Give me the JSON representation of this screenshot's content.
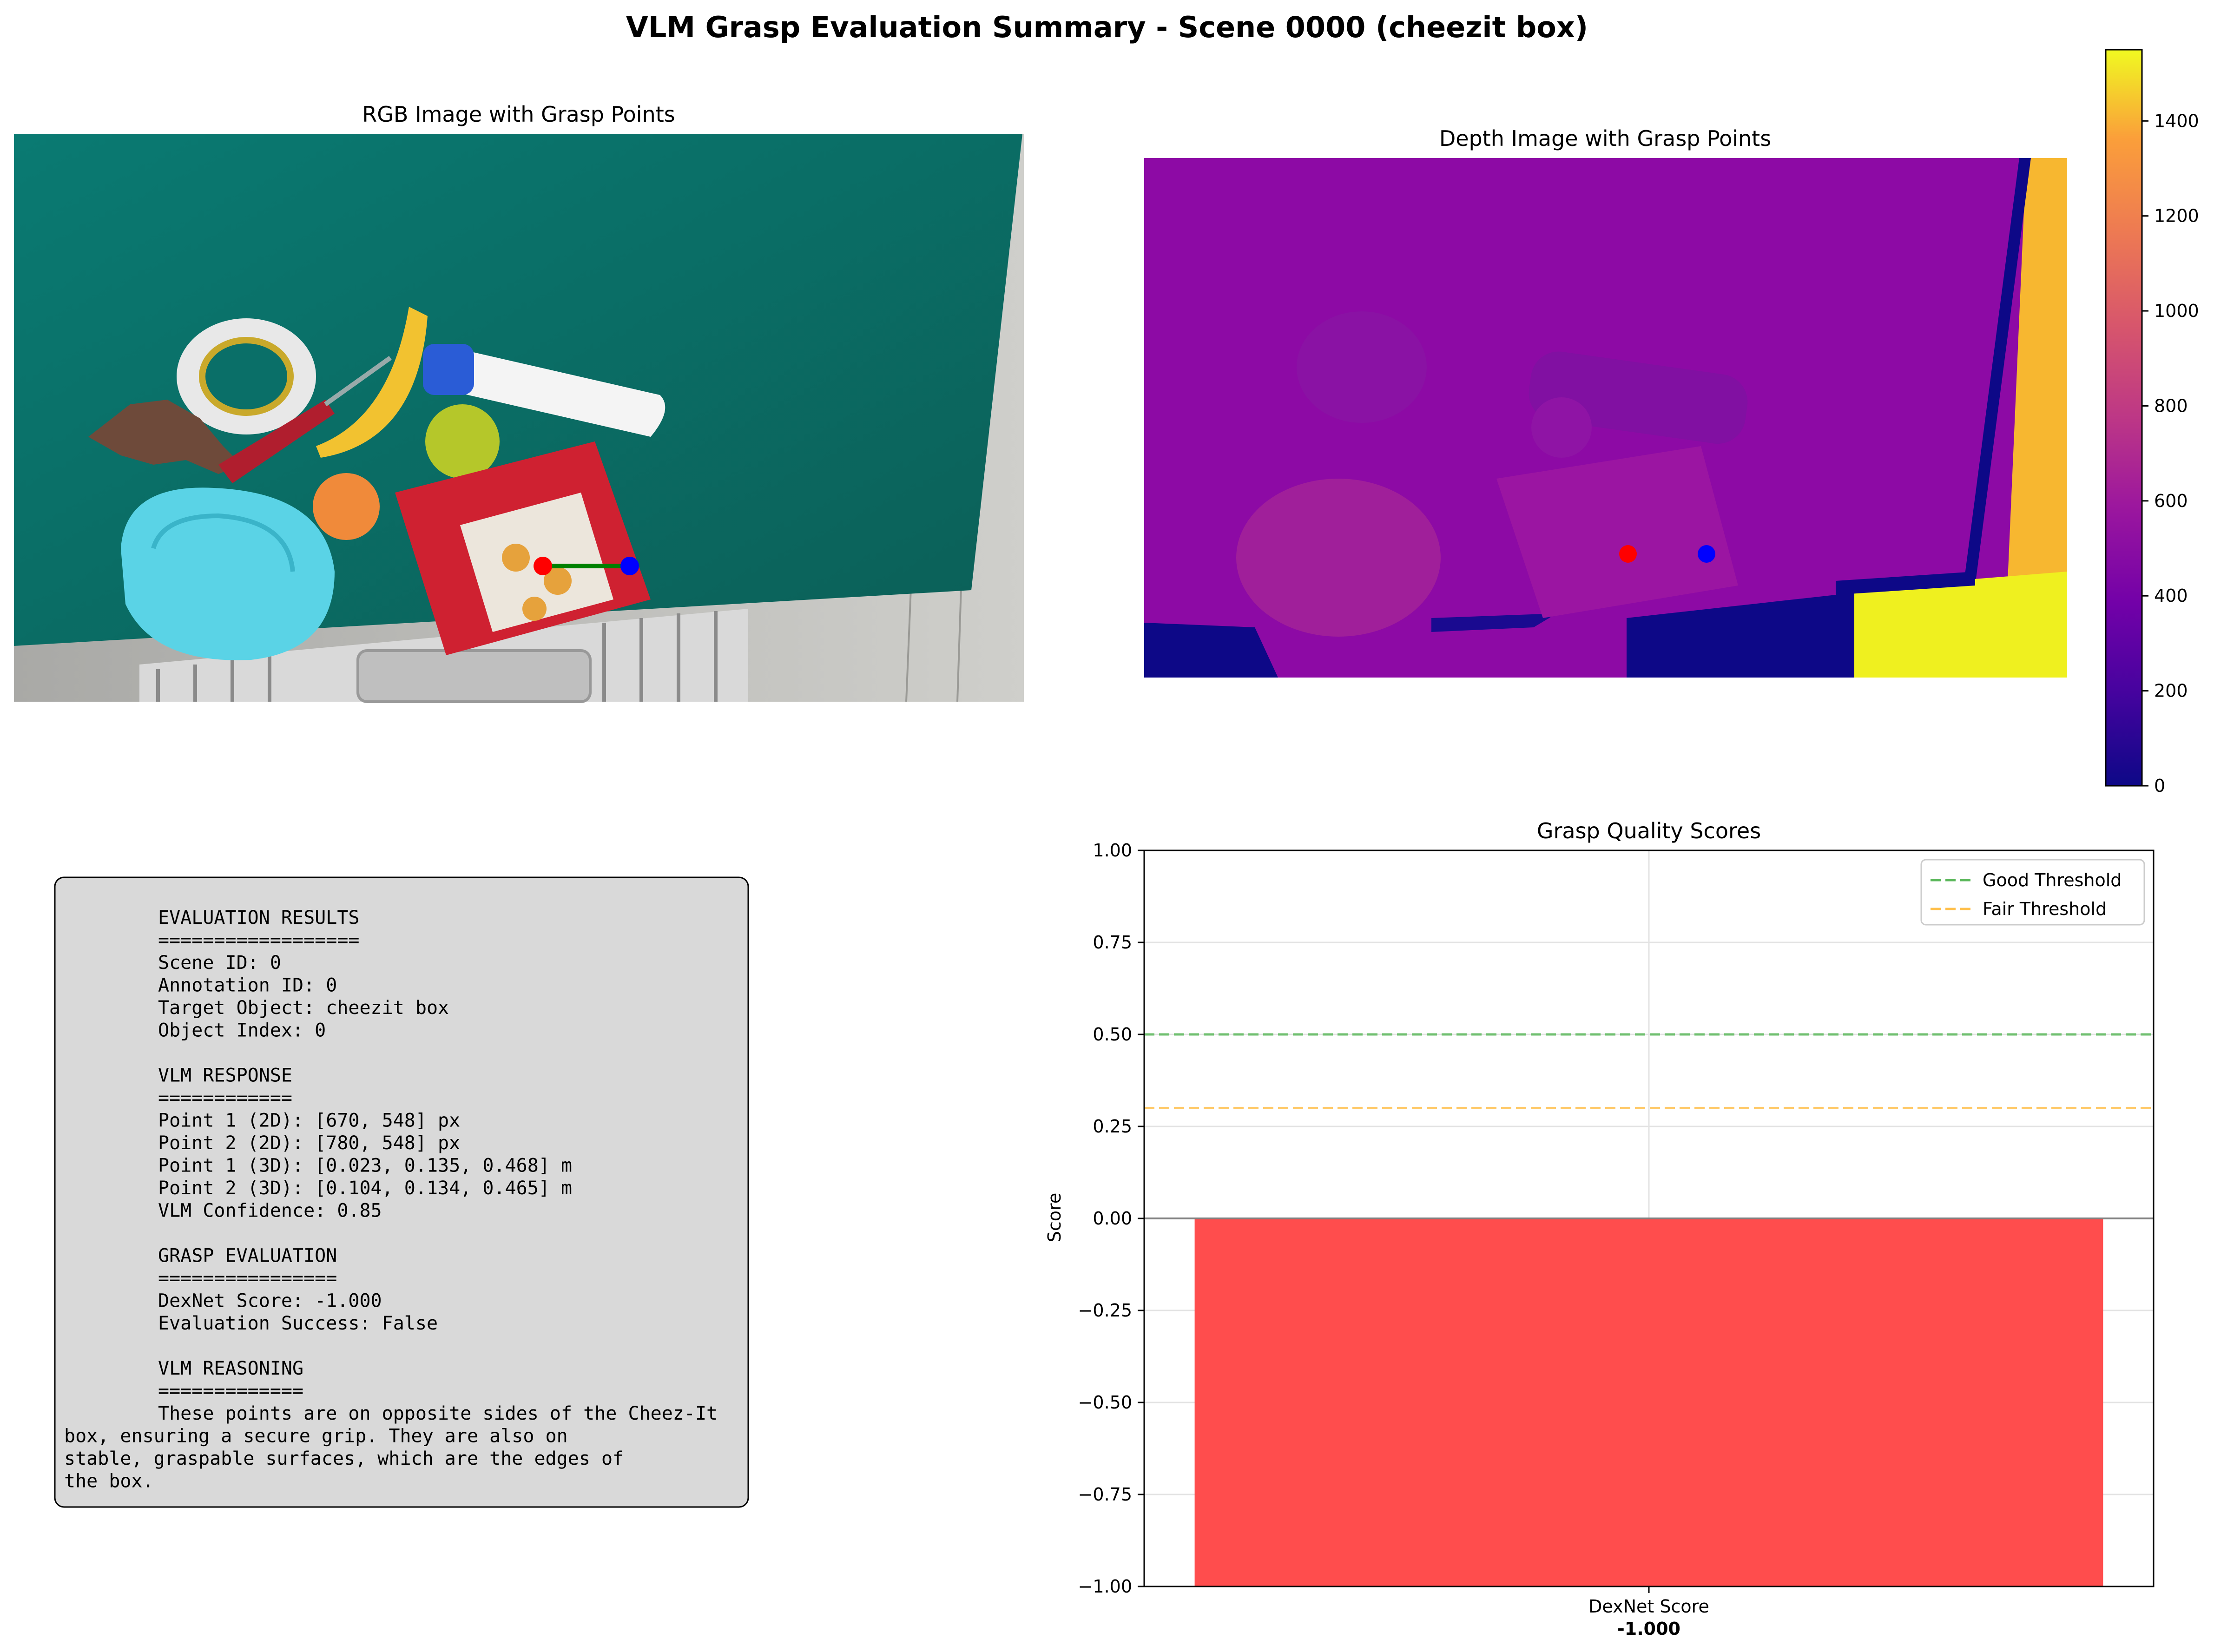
{
  "title": "VLM Grasp Evaluation Summary - Scene 0000 (cheezit box)",
  "rgb_panel": {
    "title": "RGB Image with Grasp Points"
  },
  "depth_panel": {
    "title": "Depth Image with Grasp Points",
    "colorbar": {
      "min": 0,
      "max": 1550,
      "ticks": [
        0,
        200,
        400,
        600,
        800,
        1000,
        1200,
        1400
      ]
    }
  },
  "results_box": {
    "lines": [
      "EVALUATION RESULTS",
      "==================",
      "Scene ID: 0",
      "Annotation ID: 0",
      "Target Object: cheezit box",
      "Object Index: 0",
      "",
      "VLM RESPONSE",
      "============",
      "Point 1 (2D): [670, 548] px",
      "Point 2 (2D): [780, 548] px",
      "Point 1 (3D): [0.023, 0.135, 0.468] m",
      "Point 2 (3D): [0.104, 0.134, 0.465] m",
      "VLM Confidence: 0.85",
      "",
      "GRASP EVALUATION",
      "================",
      "DexNet Score: -1.000",
      "Evaluation Success: False",
      "",
      "VLM REASONING",
      "============="
    ],
    "reasoning_lines": [
      "These points are on opposite sides of the Cheez-It",
      "box, ensuring a secure grip. They are also on",
      "stable, graspable surfaces, which are the edges of",
      "the box."
    ]
  },
  "chart_data": {
    "type": "bar",
    "title": "Grasp Quality Scores",
    "categories": [
      "DexNet Score"
    ],
    "values": [
      -1.0
    ],
    "value_labels": [
      "-1.000"
    ],
    "ylabel": "Score",
    "xlabel": "",
    "ylim": [
      -1.0,
      1.0
    ],
    "yticks": [
      1.0,
      0.75,
      0.5,
      0.25,
      0.0,
      -0.25,
      -0.5,
      -0.75,
      -1.0
    ],
    "ytick_labels": [
      "1.00",
      "0.75",
      "0.50",
      "0.25",
      "0.00",
      "−0.25",
      "−0.50",
      "−0.75",
      "−1.00"
    ],
    "bar_color": "#ff4d4d",
    "grid": true,
    "thresholds": [
      {
        "name": "Good Threshold",
        "value": 0.5,
        "color": "#5cb85c"
      },
      {
        "name": "Fair Threshold",
        "value": 0.3,
        "color": "#ffc04d"
      }
    ],
    "legend_position": "top-right"
  },
  "grasp_points": {
    "point1": {
      "color": "#ff0000"
    },
    "point2": {
      "color": "#0000ff"
    },
    "line_color": "#008000"
  }
}
